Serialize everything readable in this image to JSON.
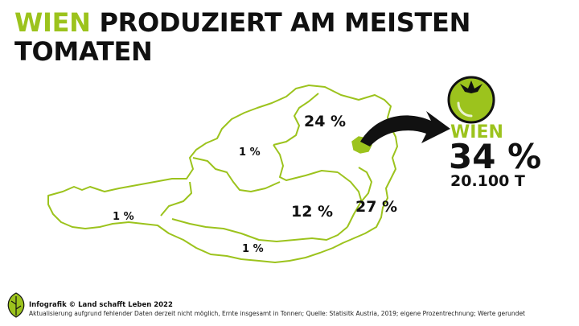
{
  "title": {
    "highlight": "WIEN",
    "line1_rest": " PRODUZIERT AM MEISTEN",
    "line2": "TOMATEN"
  },
  "map": {
    "outline_color": "#9cc31d",
    "highlight_color": "#9cc31d",
    "regions": [
      {
        "name": "Vorarlberg/Tirol",
        "share": "1 %"
      },
      {
        "name": "Oberösterreich/Salzburg",
        "share": "1 %"
      },
      {
        "name": "Niederösterreich",
        "share": "24 %"
      },
      {
        "name": "Steiermark",
        "share": "12 %"
      },
      {
        "name": "Kärnten",
        "share": "1 %"
      },
      {
        "name": "Burgenland",
        "share": "27 %"
      }
    ]
  },
  "highlight": {
    "name": "WIEN",
    "share": "34 %",
    "amount": "20.100 T",
    "icon": "tomato-icon"
  },
  "footer": {
    "credit": "Infografik © Land schafft Leben 2022",
    "note": "Aktualisierung aufgrund fehlender Daten derzeit nicht möglich, Ernte insgesamt in Tonnen; Quelle: Statisitk Austria, 2019; eigene Prozentrechnung; Werte gerundet",
    "logo": "leaf-logo-icon"
  },
  "colors": {
    "accent": "#9cc31d",
    "text": "#111111",
    "tomato": "#9cc31d"
  }
}
